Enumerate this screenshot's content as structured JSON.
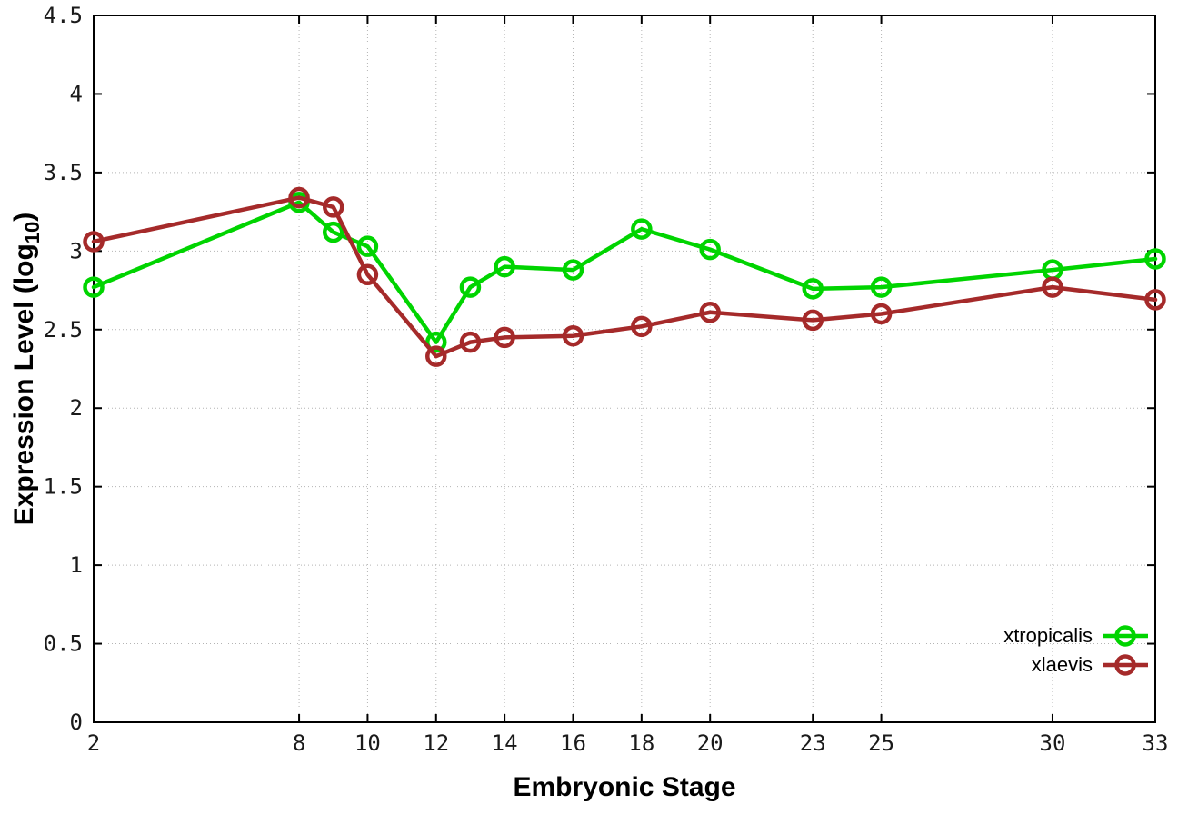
{
  "chart_data": {
    "type": "line",
    "xlabel": "Embryonic Stage",
    "ylabel": "Expression Level (log10)",
    "ylabel_parts": {
      "pre": "Expression Level (log",
      "sub": "10",
      "post": ")"
    },
    "x": [
      2,
      8,
      9,
      10,
      12,
      13,
      14,
      16,
      18,
      20,
      23,
      25,
      30,
      33
    ],
    "x_ticks": [
      2,
      8,
      10,
      12,
      14,
      16,
      18,
      20,
      23,
      25,
      30,
      33
    ],
    "y_ticks": [
      "0",
      "0.5",
      "1",
      "1.5",
      "2",
      "2.5",
      "3",
      "3.5",
      "4",
      "4.5"
    ],
    "xlim": [
      2,
      33
    ],
    "ylim": [
      0,
      4.5
    ],
    "grid": true,
    "legend_position": "inside-bottom-right",
    "series": [
      {
        "name": "xtropicalis",
        "color": "#00d400",
        "marker": "open-circle",
        "values": [
          2.77,
          3.31,
          3.12,
          3.03,
          2.42,
          2.77,
          2.9,
          2.88,
          3.14,
          3.01,
          2.76,
          2.77,
          2.88,
          2.95
        ]
      },
      {
        "name": "xlaevis",
        "color": "#a52a2a",
        "marker": "open-circle",
        "values": [
          3.06,
          3.34,
          3.28,
          2.85,
          2.33,
          2.42,
          2.45,
          2.46,
          2.52,
          2.61,
          2.56,
          2.6,
          2.77,
          2.69
        ]
      }
    ]
  },
  "colors": {
    "background": "#ffffff",
    "grid": "#b4b4b4",
    "axis": "#000000"
  }
}
